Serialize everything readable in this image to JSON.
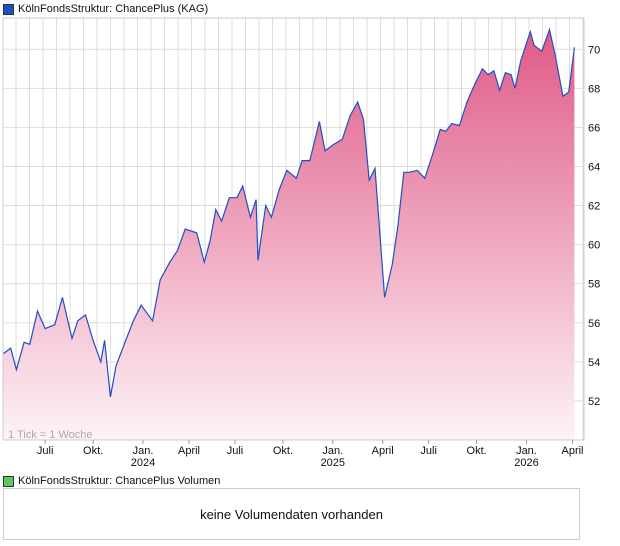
{
  "legend_price": "KölnFondsStruktur: ChancePlus (KAG)",
  "legend_volume": "KölnFondsStruktur: ChancePlus Volumen",
  "volume_message": "keine Volumendaten vorhanden",
  "colors": {
    "line": "#1f4fc4",
    "fill_top": "#e05a87",
    "fill_bottom": "#fdf3f6",
    "price_swatch": "#1f4fc4",
    "volume_swatch": "#5cc95c"
  },
  "chart_data": {
    "type": "area",
    "title": "KölnFondsStruktur: ChancePlus (KAG)",
    "note": "1 Tick = 1 Woche",
    "ylim": [
      50,
      71.6
    ],
    "xlim": [
      2023.28,
      2026.31
    ],
    "yticks": [
      52,
      54,
      56,
      58,
      60,
      62,
      64,
      66,
      68,
      70
    ],
    "xticks": [
      {
        "t": 2023.5,
        "label": "Juli",
        "year": ""
      },
      {
        "t": 2023.75,
        "label": "Okt.",
        "year": ""
      },
      {
        "t": 2024.01,
        "label": "Jan.",
        "year": "2024"
      },
      {
        "t": 2024.25,
        "label": "April",
        "year": ""
      },
      {
        "t": 2024.49,
        "label": "Juli",
        "year": ""
      },
      {
        "t": 2024.74,
        "label": "Okt.",
        "year": ""
      },
      {
        "t": 2025.0,
        "label": "Jan.",
        "year": "2025"
      },
      {
        "t": 2025.26,
        "label": "April",
        "year": ""
      },
      {
        "t": 2025.5,
        "label": "Juli",
        "year": ""
      },
      {
        "t": 2025.75,
        "label": "Okt.",
        "year": ""
      },
      {
        "t": 2026.01,
        "label": "Jan.",
        "year": "2026"
      },
      {
        "t": 2026.25,
        "label": "April",
        "year": ""
      }
    ],
    "series": [
      {
        "name": "KölnFondsStruktur: ChancePlus (KAG)",
        "points": [
          [
            2023.28,
            54.4
          ],
          [
            2023.32,
            54.7
          ],
          [
            2023.35,
            53.6
          ],
          [
            2023.39,
            55.0
          ],
          [
            2023.42,
            54.9
          ],
          [
            2023.46,
            56.6
          ],
          [
            2023.5,
            55.7
          ],
          [
            2023.55,
            55.9
          ],
          [
            2023.59,
            57.3
          ],
          [
            2023.64,
            55.2
          ],
          [
            2023.67,
            56.1
          ],
          [
            2023.71,
            56.4
          ],
          [
            2023.75,
            55.1
          ],
          [
            2023.79,
            54.0
          ],
          [
            2023.81,
            55.1
          ],
          [
            2023.84,
            52.2
          ],
          [
            2023.87,
            53.8
          ],
          [
            2023.92,
            55.1
          ],
          [
            2023.96,
            56.1
          ],
          [
            2024.0,
            56.9
          ],
          [
            2024.06,
            56.1
          ],
          [
            2024.1,
            58.2
          ],
          [
            2024.15,
            59.1
          ],
          [
            2024.19,
            59.7
          ],
          [
            2024.23,
            60.8
          ],
          [
            2024.29,
            60.6
          ],
          [
            2024.33,
            59.1
          ],
          [
            2024.36,
            60.2
          ],
          [
            2024.39,
            61.8
          ],
          [
            2024.42,
            61.2
          ],
          [
            2024.46,
            62.4
          ],
          [
            2024.5,
            62.4
          ],
          [
            2024.53,
            63.0
          ],
          [
            2024.57,
            61.4
          ],
          [
            2024.6,
            62.3
          ],
          [
            2024.61,
            59.2
          ],
          [
            2024.65,
            62.0
          ],
          [
            2024.68,
            61.4
          ],
          [
            2024.72,
            62.8
          ],
          [
            2024.76,
            63.8
          ],
          [
            2024.81,
            63.4
          ],
          [
            2024.84,
            64.3
          ],
          [
            2024.88,
            64.3
          ],
          [
            2024.93,
            66.3
          ],
          [
            2024.96,
            64.8
          ],
          [
            2025.0,
            65.1
          ],
          [
            2025.05,
            65.4
          ],
          [
            2025.09,
            66.6
          ],
          [
            2025.13,
            67.3
          ],
          [
            2025.16,
            66.4
          ],
          [
            2025.19,
            63.3
          ],
          [
            2025.22,
            63.9
          ],
          [
            2025.27,
            57.3
          ],
          [
            2025.31,
            59.0
          ],
          [
            2025.34,
            61.0
          ],
          [
            2025.37,
            63.7
          ],
          [
            2025.4,
            63.7
          ],
          [
            2025.44,
            63.8
          ],
          [
            2025.48,
            63.4
          ],
          [
            2025.52,
            64.6
          ],
          [
            2025.56,
            65.9
          ],
          [
            2025.59,
            65.8
          ],
          [
            2025.62,
            66.2
          ],
          [
            2025.66,
            66.1
          ],
          [
            2025.7,
            67.3
          ],
          [
            2025.74,
            68.2
          ],
          [
            2025.78,
            69.0
          ],
          [
            2025.81,
            68.7
          ],
          [
            2025.84,
            68.9
          ],
          [
            2025.87,
            67.9
          ],
          [
            2025.9,
            68.8
          ],
          [
            2025.93,
            68.7
          ],
          [
            2025.95,
            68.0
          ],
          [
            2025.98,
            69.4
          ],
          [
            2026.03,
            70.9
          ],
          [
            2026.05,
            70.2
          ],
          [
            2026.09,
            69.9
          ],
          [
            2026.13,
            71.0
          ],
          [
            2026.16,
            69.7
          ],
          [
            2026.2,
            67.6
          ],
          [
            2026.23,
            67.8
          ],
          [
            2026.26,
            70.1
          ]
        ]
      }
    ]
  }
}
